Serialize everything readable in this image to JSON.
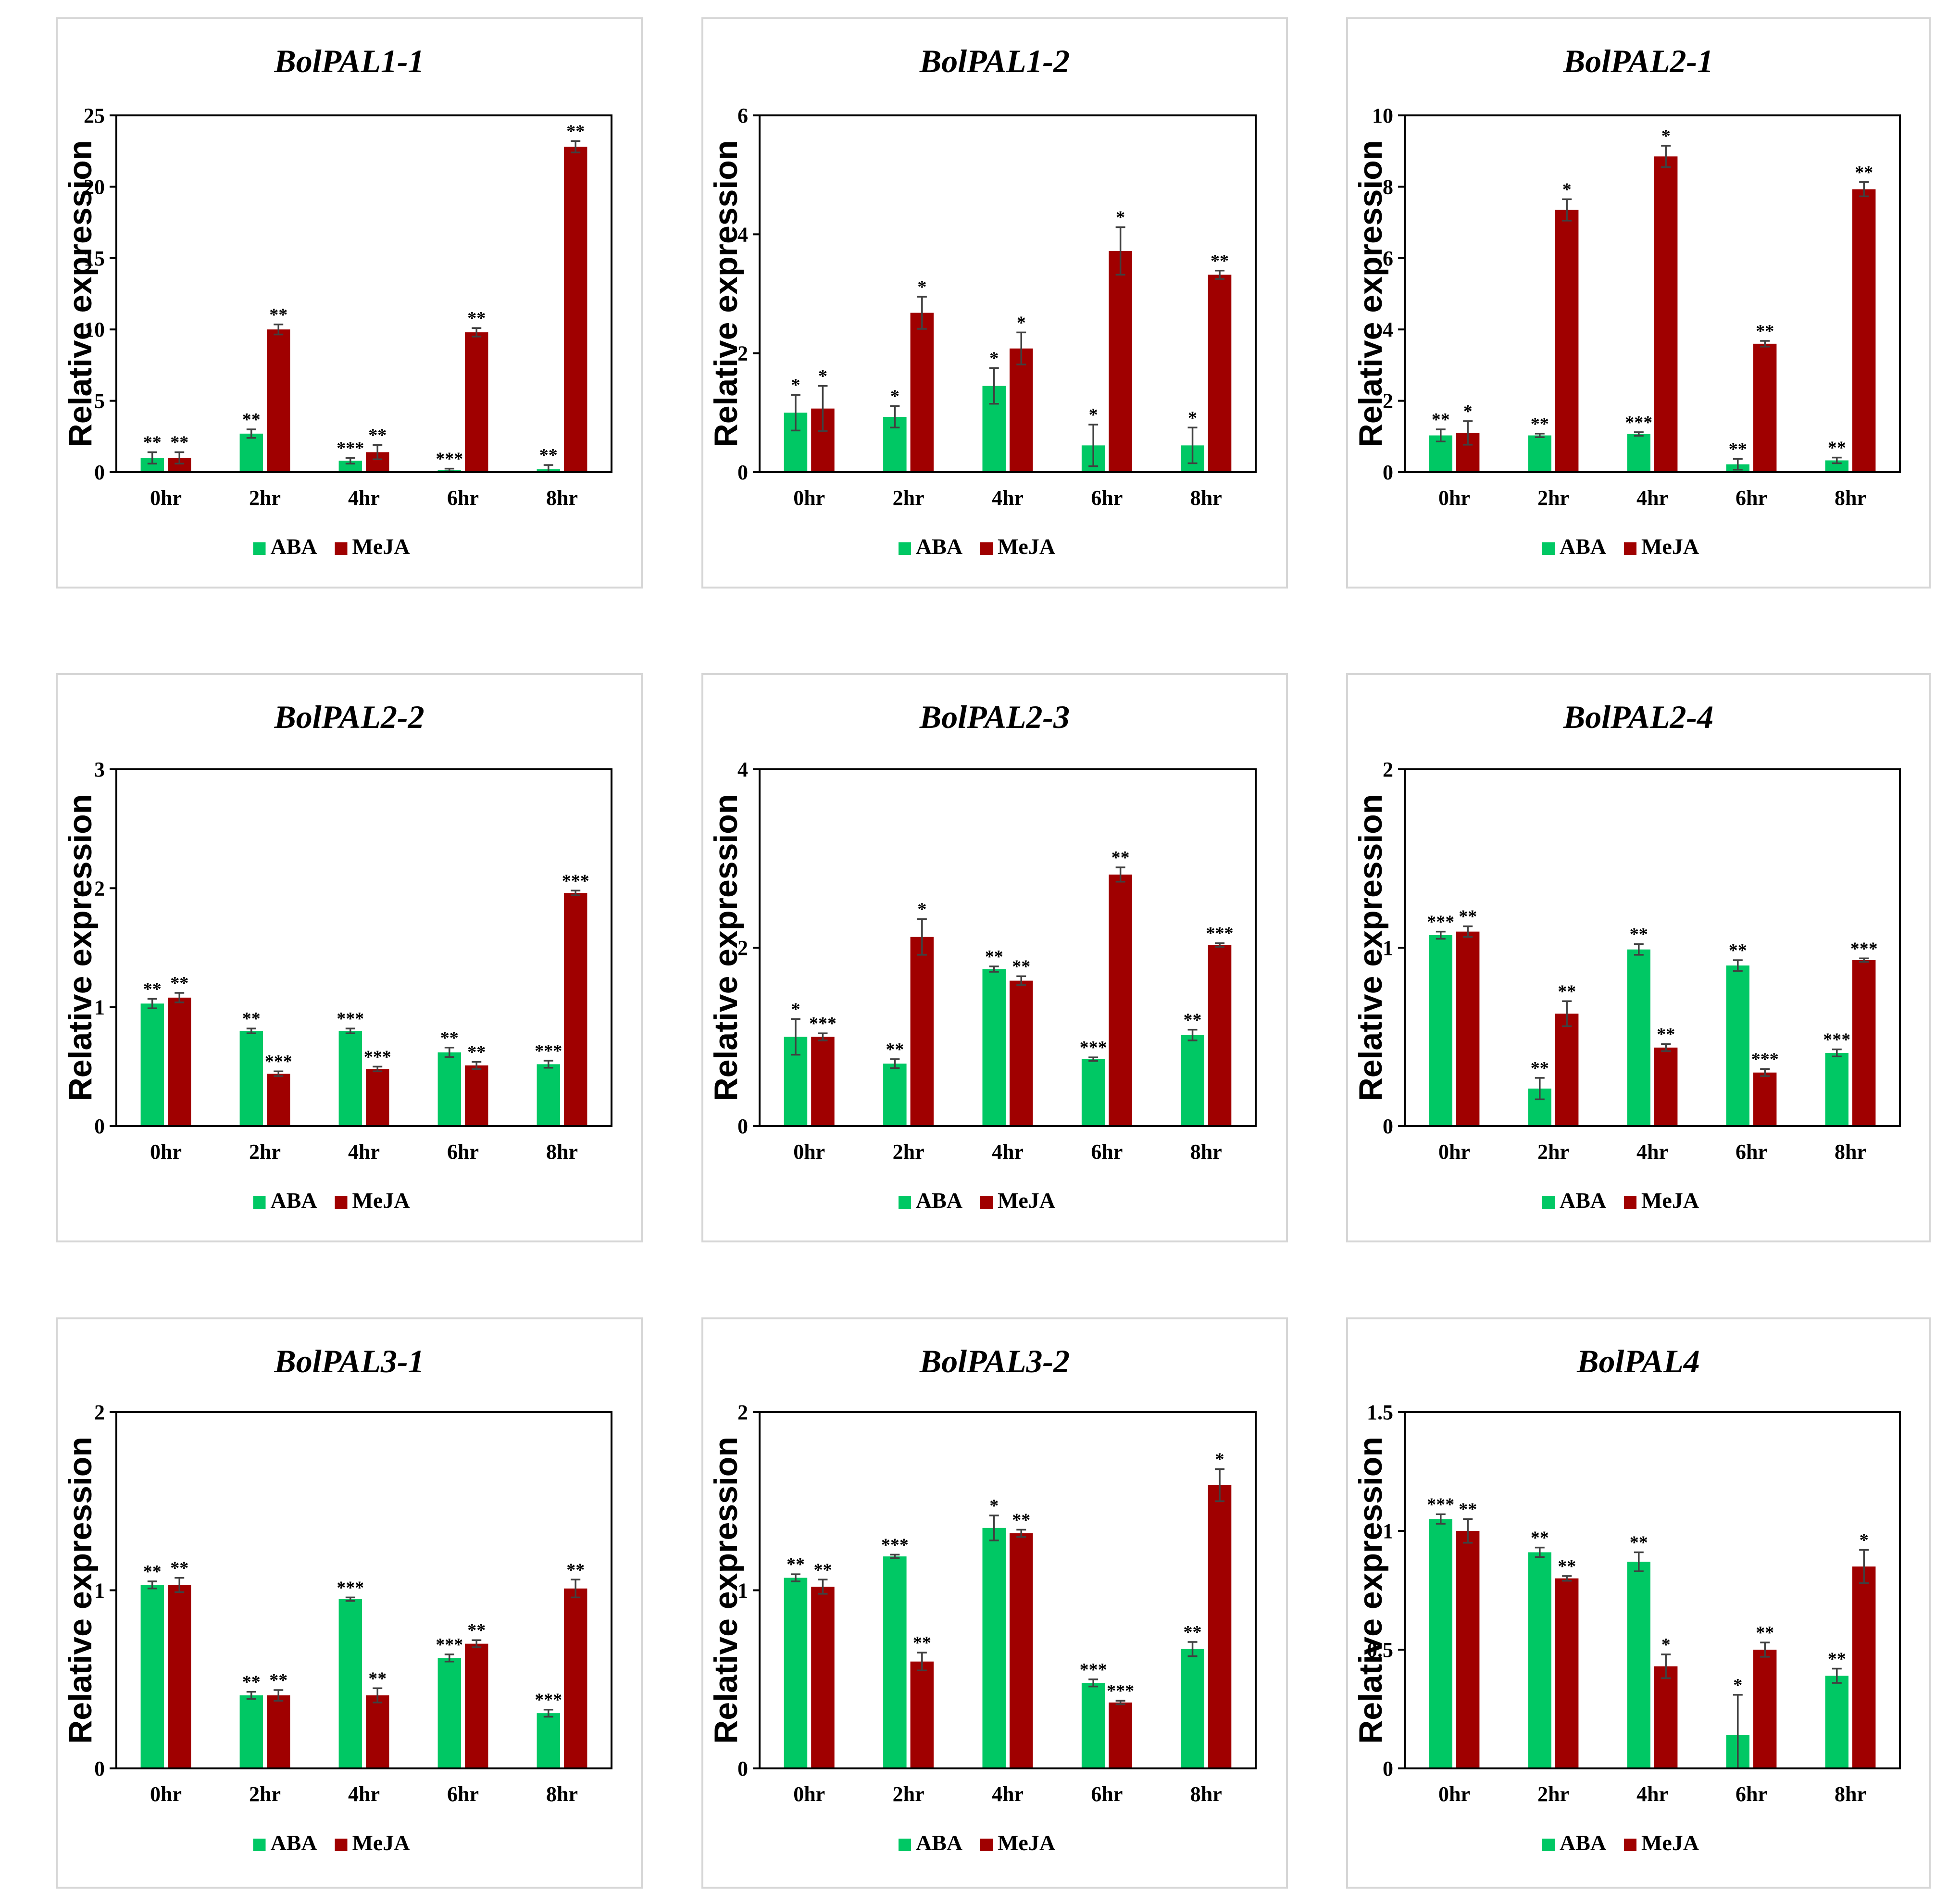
{
  "chart_data": [
    {
      "type": "bar",
      "title": "BolPAL1-1",
      "ylabel": "Relative expression",
      "categories": [
        "0hr",
        "2hr",
        "4hr",
        "6hr",
        "8hr"
      ],
      "ylim": [
        0,
        25
      ],
      "yticks": [
        0,
        5,
        10,
        15,
        20,
        25
      ],
      "series": [
        {
          "name": "ABA",
          "color": "#00c864",
          "values": [
            1.0,
            2.7,
            0.8,
            0.15,
            0.2
          ],
          "errors": [
            0.4,
            0.3,
            0.2,
            0.1,
            0.3
          ],
          "significance": [
            "**",
            "**",
            "***",
            "***",
            "**"
          ]
        },
        {
          "name": "MeJA",
          "color": "#a00000",
          "values": [
            1.0,
            10.0,
            1.4,
            9.8,
            22.8
          ],
          "errors": [
            0.4,
            0.35,
            0.5,
            0.3,
            0.4
          ],
          "significance": [
            "**",
            "**",
            "**",
            "**",
            "**"
          ]
        }
      ],
      "legend": "bottom"
    },
    {
      "type": "bar",
      "title": "BolPAL1-2",
      "ylabel": "Relative expression",
      "categories": [
        "0hr",
        "2hr",
        "4hr",
        "6hr",
        "8hr"
      ],
      "ylim": [
        0,
        6
      ],
      "yticks": [
        0,
        2,
        4,
        6
      ],
      "series": [
        {
          "name": "ABA",
          "color": "#00c864",
          "values": [
            1.0,
            0.93,
            1.45,
            0.45,
            0.45
          ],
          "errors": [
            0.3,
            0.18,
            0.3,
            0.35,
            0.3
          ],
          "significance": [
            "*",
            "*",
            "*",
            "*",
            "*"
          ]
        },
        {
          "name": "MeJA",
          "color": "#a00000",
          "values": [
            1.07,
            2.68,
            2.08,
            3.72,
            3.32
          ],
          "errors": [
            0.38,
            0.27,
            0.27,
            0.4,
            0.07
          ],
          "significance": [
            "*",
            "*",
            "*",
            "*",
            "**"
          ]
        }
      ],
      "legend": "bottom"
    },
    {
      "type": "bar",
      "title": "BolPAL2-1",
      "ylabel": "Relative expression",
      "categories": [
        "0hr",
        "2hr",
        "4hr",
        "6hr",
        "8hr"
      ],
      "ylim": [
        0,
        10
      ],
      "yticks": [
        0,
        2,
        4,
        6,
        8,
        10
      ],
      "series": [
        {
          "name": "ABA",
          "color": "#00c864",
          "values": [
            1.03,
            1.03,
            1.07,
            0.22,
            0.33
          ],
          "errors": [
            0.17,
            0.05,
            0.05,
            0.15,
            0.08
          ],
          "significance": [
            "**",
            "**",
            "***",
            "**",
            "**"
          ]
        },
        {
          "name": "MeJA",
          "color": "#a00000",
          "values": [
            1.1,
            7.35,
            8.85,
            3.6,
            7.93
          ],
          "errors": [
            0.33,
            0.3,
            0.3,
            0.08,
            0.2
          ],
          "significance": [
            "*",
            "*",
            "*",
            "**",
            "**"
          ]
        }
      ],
      "legend": "bottom"
    },
    {
      "type": "bar",
      "title": "BolPAL2-2",
      "ylabel": "Relative expression",
      "categories": [
        "0hr",
        "2hr",
        "4hr",
        "6hr",
        "8hr"
      ],
      "ylim": [
        0,
        3
      ],
      "yticks": [
        0,
        1,
        2,
        3
      ],
      "series": [
        {
          "name": "ABA",
          "color": "#00c864",
          "values": [
            1.03,
            0.8,
            0.8,
            0.62,
            0.52
          ],
          "errors": [
            0.04,
            0.02,
            0.02,
            0.04,
            0.03
          ],
          "significance": [
            "**",
            "**",
            "***",
            "**",
            "***"
          ]
        },
        {
          "name": "MeJA",
          "color": "#a00000",
          "values": [
            1.08,
            0.44,
            0.48,
            0.51,
            1.96
          ],
          "errors": [
            0.04,
            0.02,
            0.02,
            0.03,
            0.02
          ],
          "significance": [
            "**",
            "***",
            "***",
            "**",
            "***"
          ]
        }
      ],
      "legend": "bottom"
    },
    {
      "type": "bar",
      "title": "BolPAL2-3",
      "ylabel": "Relative expression",
      "categories": [
        "0hr",
        "2hr",
        "4hr",
        "6hr",
        "8hr"
      ],
      "ylim": [
        0,
        4
      ],
      "yticks": [
        0,
        2,
        4
      ],
      "series": [
        {
          "name": "ABA",
          "color": "#00c864",
          "values": [
            1.0,
            0.7,
            1.76,
            0.75,
            1.02
          ],
          "errors": [
            0.2,
            0.05,
            0.03,
            0.02,
            0.06
          ],
          "significance": [
            "*",
            "**",
            "**",
            "***",
            "**"
          ]
        },
        {
          "name": "MeJA",
          "color": "#a00000",
          "values": [
            1.0,
            2.12,
            1.63,
            2.82,
            2.03
          ],
          "errors": [
            0.04,
            0.2,
            0.05,
            0.08,
            0.02
          ],
          "significance": [
            "***",
            "*",
            "**",
            "**",
            "***"
          ]
        }
      ],
      "legend": "bottom"
    },
    {
      "type": "bar",
      "title": "BolPAL2-4",
      "ylabel": "Relative expression",
      "categories": [
        "0hr",
        "2hr",
        "4hr",
        "6hr",
        "8hr"
      ],
      "ylim": [
        0,
        2
      ],
      "yticks": [
        0,
        1,
        2
      ],
      "series": [
        {
          "name": "ABA",
          "color": "#00c864",
          "values": [
            1.07,
            0.21,
            0.99,
            0.9,
            0.41
          ],
          "errors": [
            0.02,
            0.06,
            0.03,
            0.03,
            0.02
          ],
          "significance": [
            "***",
            "**",
            "**",
            "**",
            "***"
          ]
        },
        {
          "name": "MeJA",
          "color": "#a00000",
          "values": [
            1.09,
            0.63,
            0.44,
            0.3,
            0.93
          ],
          "errors": [
            0.03,
            0.07,
            0.02,
            0.02,
            0.01
          ],
          "significance": [
            "**",
            "**",
            "**",
            "***",
            "***"
          ]
        }
      ],
      "legend": "bottom"
    },
    {
      "type": "bar",
      "title": "BolPAL3-1",
      "ylabel": "Relative expression",
      "categories": [
        "0hr",
        "2hr",
        "4hr",
        "6hr",
        "8hr"
      ],
      "ylim": [
        0,
        2
      ],
      "yticks": [
        0,
        1,
        2
      ],
      "series": [
        {
          "name": "ABA",
          "color": "#00c864",
          "values": [
            1.03,
            0.41,
            0.95,
            0.62,
            0.31
          ],
          "errors": [
            0.02,
            0.02,
            0.01,
            0.02,
            0.02
          ],
          "significance": [
            "**",
            "**",
            "***",
            "***",
            "***"
          ]
        },
        {
          "name": "MeJA",
          "color": "#a00000",
          "values": [
            1.03,
            0.41,
            0.41,
            0.7,
            1.01
          ],
          "errors": [
            0.04,
            0.03,
            0.04,
            0.02,
            0.05
          ],
          "significance": [
            "**",
            "**",
            "**",
            "**",
            "**"
          ]
        }
      ],
      "legend": "bottom"
    },
    {
      "type": "bar",
      "title": "BolPAL3-2",
      "ylabel": "Relative expression",
      "categories": [
        "0hr",
        "2hr",
        "4hr",
        "6hr",
        "8hr"
      ],
      "ylim": [
        0,
        2
      ],
      "yticks": [
        0,
        1,
        2
      ],
      "series": [
        {
          "name": "ABA",
          "color": "#00c864",
          "values": [
            1.07,
            1.19,
            1.35,
            0.48,
            0.67
          ],
          "errors": [
            0.02,
            0.01,
            0.07,
            0.02,
            0.04
          ],
          "significance": [
            "**",
            "***",
            "*",
            "***",
            "**"
          ]
        },
        {
          "name": "MeJA",
          "color": "#a00000",
          "values": [
            1.02,
            0.6,
            1.32,
            0.37,
            1.59
          ],
          "errors": [
            0.04,
            0.05,
            0.02,
            0.01,
            0.09
          ],
          "significance": [
            "**",
            "**",
            "**",
            "***",
            "*"
          ]
        }
      ],
      "legend": "bottom"
    },
    {
      "type": "bar",
      "title": "BolPAL4",
      "ylabel": "Relative expression",
      "categories": [
        "0hr",
        "2hr",
        "4hr",
        "6hr",
        "8hr"
      ],
      "ylim": [
        0,
        1.5
      ],
      "yticks": [
        0,
        0.5,
        1,
        1.5
      ],
      "series": [
        {
          "name": "ABA",
          "color": "#00c864",
          "values": [
            1.05,
            0.91,
            0.87,
            0.14,
            0.39
          ],
          "errors": [
            0.02,
            0.02,
            0.04,
            0.17,
            0.03
          ],
          "significance": [
            "***",
            "**",
            "**",
            "*",
            "**"
          ]
        },
        {
          "name": "MeJA",
          "color": "#a00000",
          "values": [
            1.0,
            0.8,
            0.43,
            0.5,
            0.85
          ],
          "errors": [
            0.05,
            0.01,
            0.05,
            0.03,
            0.07
          ],
          "significance": [
            "**",
            "**",
            "*",
            "**",
            "*"
          ]
        }
      ],
      "legend": "bottom"
    }
  ]
}
